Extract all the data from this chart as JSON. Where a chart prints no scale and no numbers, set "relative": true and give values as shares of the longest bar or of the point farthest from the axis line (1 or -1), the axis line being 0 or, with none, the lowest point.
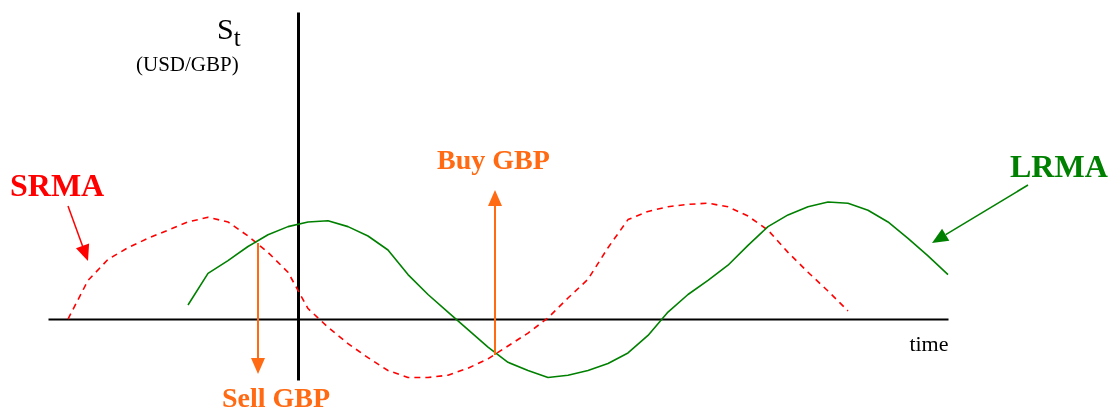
{
  "chart_data": {
    "type": "line",
    "relative": true,
    "xlabel": "time",
    "ylabel": "S$_{t}$\n(USD/GBP)",
    "categories": [
      null,
      null,
      null,
      null,
      null,
      null,
      null,
      null,
      null,
      null,
      null,
      null,
      null,
      null,
      null,
      null,
      null,
      null,
      null,
      null,
      null,
      null,
      null,
      null,
      null,
      null,
      null,
      null,
      null,
      null,
      null,
      null,
      null,
      null,
      null,
      null,
      null,
      null,
      null,
      null,
      null,
      null,
      null,
      null,
      null,
      null
    ],
    "series": [
      {
        "name": "SRMA",
        "color": "#ff0000",
        "line_style": "dashed",
        "values": [
          null,
          0,
          0.33,
          0.51,
          0.61,
          0.69,
          0.76,
          0.83,
          0.87,
          0.83,
          0.71,
          0.57,
          0.4,
          0.09,
          -0.07,
          -0.21,
          -0.33,
          -0.44,
          -0.5,
          -0.5,
          -0.48,
          -0.42,
          -0.34,
          -0.23,
          -0.12,
          0.01,
          0.18,
          0.34,
          0.61,
          0.85,
          0.92,
          0.96,
          0.98,
          0.99,
          0.96,
          0.88,
          0.76,
          0.57,
          0.4,
          0.24,
          0.07,
          null,
          null,
          null,
          null,
          null
        ]
      },
      {
        "name": "LRMA",
        "color": "#008000",
        "line_style": "solid",
        "values": [
          null,
          null,
          null,
          null,
          null,
          null,
          null,
          0.12,
          0.39,
          0.5,
          0.62,
          0.72,
          0.79,
          0.83,
          0.84,
          0.79,
          0.71,
          0.59,
          0.38,
          0.21,
          0.06,
          -0.09,
          -0.24,
          -0.37,
          -0.44,
          -0.5,
          -0.48,
          -0.44,
          -0.38,
          -0.29,
          -0.14,
          0.06,
          0.21,
          0.33,
          0.46,
          0.63,
          0.79,
          0.89,
          0.96,
          1,
          0.99,
          0.93,
          0.83,
          0.69,
          0.54,
          0.38
        ]
      }
    ],
    "annotations": [
      "Buy GBP",
      "Sell GBP"
    ]
  }
}
